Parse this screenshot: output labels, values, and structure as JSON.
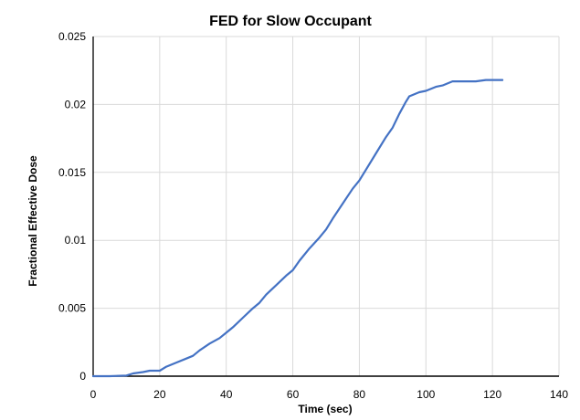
{
  "chart_data": {
    "type": "line",
    "title": "FED for Slow Occupant",
    "xlabel": "Time (sec)",
    "ylabel": "Fractional Effective Dose",
    "xlim": [
      0,
      140
    ],
    "ylim": [
      0,
      0.025
    ],
    "x_ticks": [
      0,
      20,
      40,
      60,
      80,
      100,
      120,
      140
    ],
    "y_ticks": [
      0,
      0.005,
      0.01,
      0.015,
      0.02,
      0.025
    ],
    "x_tick_labels": [
      "0",
      "20",
      "40",
      "60",
      "80",
      "100",
      "120",
      "140"
    ],
    "y_tick_labels": [
      "0",
      "0.005",
      "0.01",
      "0.015",
      "0.02",
      "0.025"
    ],
    "grid": true,
    "series": [
      {
        "color": "#4472C4",
        "points": [
          [
            0,
            0
          ],
          [
            5,
            0
          ],
          [
            10,
            5e-05
          ],
          [
            12,
            0.0002
          ],
          [
            15,
            0.0003
          ],
          [
            17,
            0.0004
          ],
          [
            20,
            0.0004
          ],
          [
            22,
            0.0007
          ],
          [
            25,
            0.001
          ],
          [
            28,
            0.0013
          ],
          [
            30,
            0.0015
          ],
          [
            32,
            0.0019
          ],
          [
            35,
            0.0024
          ],
          [
            38,
            0.0028
          ],
          [
            40,
            0.0032
          ],
          [
            42,
            0.0036
          ],
          [
            45,
            0.0043
          ],
          [
            48,
            0.005
          ],
          [
            50,
            0.0054
          ],
          [
            52,
            0.006
          ],
          [
            55,
            0.0067
          ],
          [
            58,
            0.0074
          ],
          [
            60,
            0.0078
          ],
          [
            62,
            0.0085
          ],
          [
            65,
            0.0094
          ],
          [
            68,
            0.0102
          ],
          [
            70,
            0.0108
          ],
          [
            72,
            0.0116
          ],
          [
            75,
            0.0127
          ],
          [
            78,
            0.0138
          ],
          [
            80,
            0.0144
          ],
          [
            82,
            0.0152
          ],
          [
            85,
            0.0164
          ],
          [
            88,
            0.0176
          ],
          [
            90,
            0.0183
          ],
          [
            92,
            0.0193
          ],
          [
            94,
            0.0202
          ],
          [
            95,
            0.0206
          ],
          [
            98,
            0.0209
          ],
          [
            100,
            0.021
          ],
          [
            103,
            0.0213
          ],
          [
            105,
            0.0214
          ],
          [
            108,
            0.0217
          ],
          [
            110,
            0.0217
          ],
          [
            115,
            0.0217
          ],
          [
            118,
            0.0218
          ],
          [
            120,
            0.0218
          ],
          [
            123,
            0.0218
          ]
        ]
      }
    ]
  }
}
